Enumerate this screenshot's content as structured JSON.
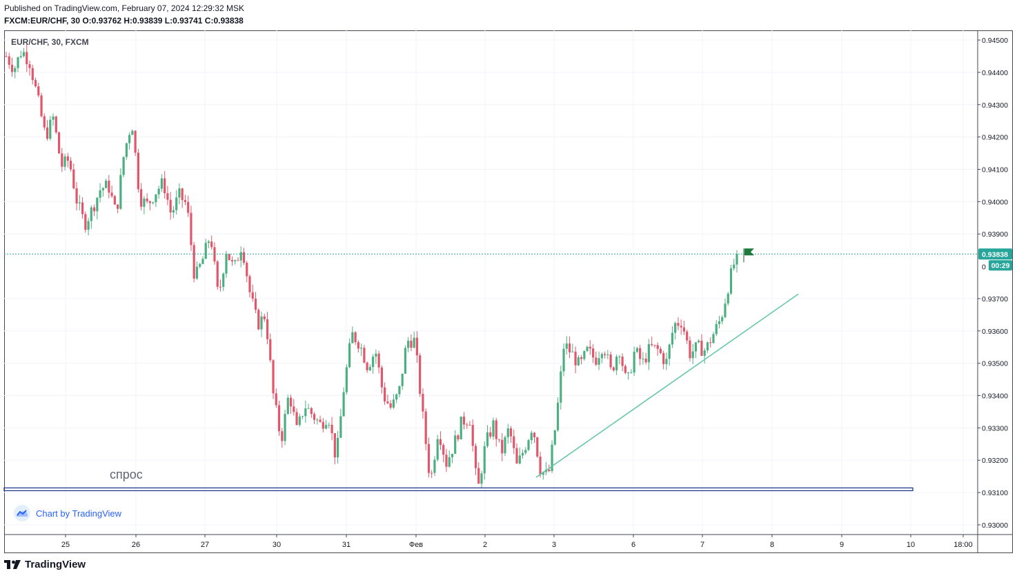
{
  "header": {
    "published": "Published on TradingView.com, February 07, 2024 12:29:32 MSK",
    "ohlc": "FXCM:EUR/CHF, 30 O:0.93762 H:0.93839 L:0.93741 C:0.93838"
  },
  "symbol_label": "EUR/CHF, 30, FXCM",
  "badge_text": "Chart by TradingView",
  "footer_brand": "TradingView",
  "chart_data": {
    "type": "candlestick",
    "ylim": [
      0.9297,
      0.9453
    ],
    "y_ticks": [
      "0.94500",
      "0.94400",
      "0.94300",
      "0.94200",
      "0.94100",
      "0.94000",
      "0.93900",
      "0.93700",
      "0.93600",
      "0.93500",
      "0.93400",
      "0.93300",
      "0.93200",
      "0.93100",
      "0.93000"
    ],
    "x_ticks": [
      "25",
      "26",
      "27",
      "30",
      "31",
      "Фев",
      "2",
      "3",
      "6",
      "7",
      "8",
      "9",
      "10",
      "18:00"
    ],
    "last_price": "0.93838",
    "last_price_value": 0.93838,
    "countdown": "00:29",
    "countdown_axis_partial": "0",
    "annotation": "спрос",
    "support_level": 0.9311,
    "trendline": [
      0.93147,
      0.93714
    ],
    "colors": {
      "up": "#26a69a",
      "up_body": "#4caf82",
      "down": "#ef5350",
      "down_body": "#e0566a",
      "support": "#1e3a8a",
      "trend": "#66c8a8",
      "price_line": "#26a69a",
      "grid": "#f0f3fa"
    },
    "price_path": [
      0.9445,
      0.9441,
      0.9447,
      0.9443,
      0.9432,
      0.942,
      0.9426,
      0.9411,
      0.9413,
      0.94,
      0.9393,
      0.9398,
      0.9404,
      0.9405,
      0.9396,
      0.9415,
      0.9425,
      0.9401,
      0.9399,
      0.9403,
      0.9406,
      0.9396,
      0.9402,
      0.9399,
      0.9376,
      0.9382,
      0.939,
      0.937,
      0.9385,
      0.9379,
      0.9387,
      0.9372,
      0.9362,
      0.9365,
      0.934,
      0.9326,
      0.9341,
      0.9329,
      0.9337,
      0.9334,
      0.9331,
      0.9334,
      0.932,
      0.9343,
      0.9359,
      0.9356,
      0.9349,
      0.9354,
      0.934,
      0.9336,
      0.9341,
      0.9357,
      0.9357,
      0.9334,
      0.9313,
      0.933,
      0.9319,
      0.9325,
      0.9332,
      0.9333,
      0.931,
      0.9325,
      0.9331,
      0.9322,
      0.933,
      0.9318,
      0.9324,
      0.9331,
      0.9317,
      0.9315,
      0.9332,
      0.9356,
      0.9353,
      0.9349,
      0.9354,
      0.9351,
      0.9356,
      0.9347,
      0.9355,
      0.9343,
      0.9354,
      0.935,
      0.9355,
      0.9354,
      0.935,
      0.9362,
      0.9363,
      0.9353,
      0.9355,
      0.9354,
      0.9359,
      0.9364,
      0.9375,
      0.9384
    ]
  }
}
